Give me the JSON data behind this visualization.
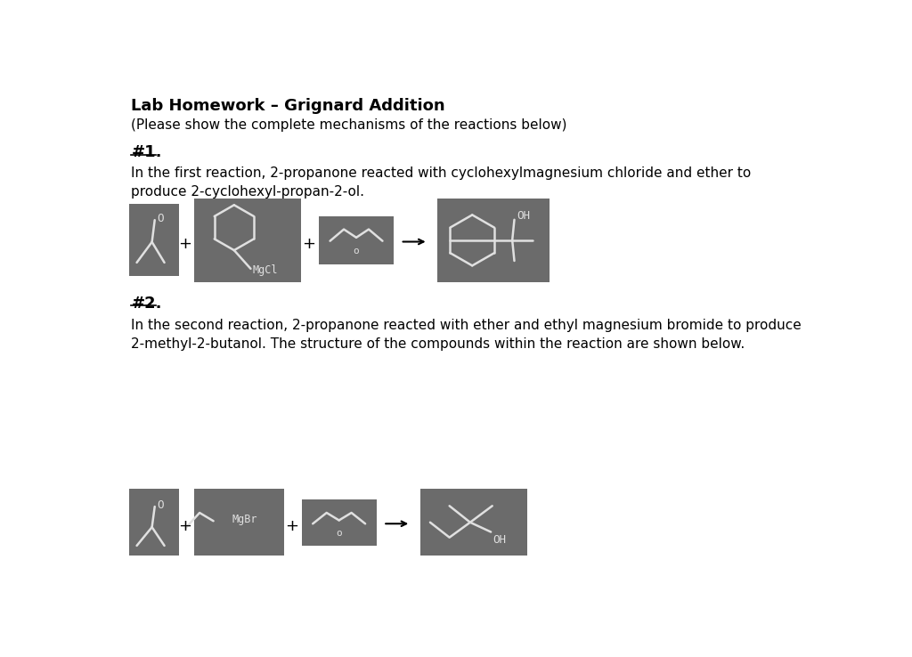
{
  "title": "Lab Homework – Grignard Addition",
  "subtitle": "(Please show the complete mechanisms of the reactions below)",
  "section1_label": "#1.",
  "section1_text": "In the first reaction, 2-propanone reacted with cyclohexylmagnesium chloride and ether to\nproduce 2-cyclohexyl-propan-2-ol.",
  "section2_label": "#2.",
  "section2_text": "In the second reaction, 2-propanone reacted with ether and ethyl magnesium bromide to produce\n2-methyl-2-butanol. The structure of the compounds within the reaction are shown below.",
  "bg_color": "#ffffff",
  "box_color": "#6b6b6b",
  "line_color": "#e0e0e0",
  "text_color": "#000000",
  "title_fontsize": 13,
  "body_fontsize": 11,
  "label_fontsize": 13
}
